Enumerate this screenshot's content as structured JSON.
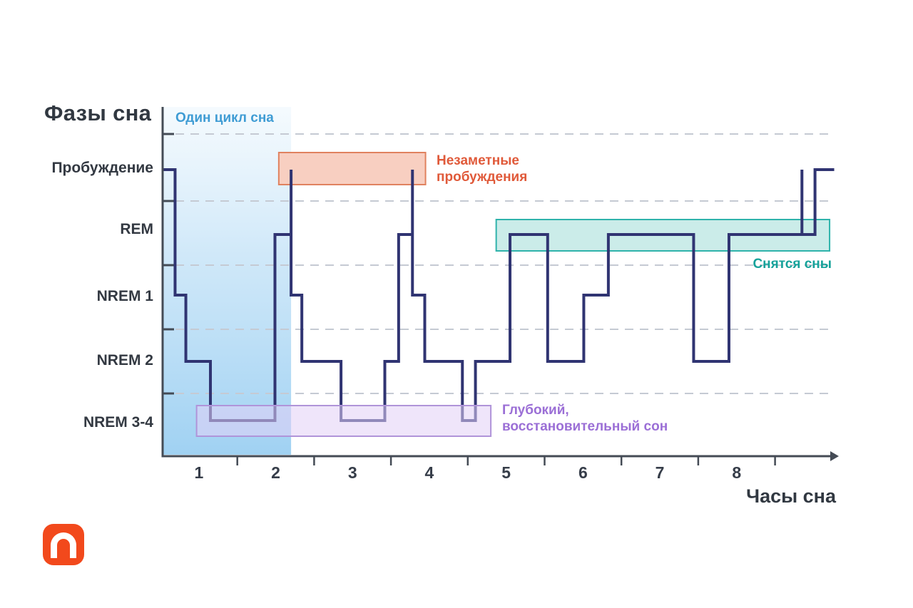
{
  "title": "Фазы сна",
  "x_axis": {
    "label": "Часы сна",
    "ticks": [
      "1",
      "2",
      "3",
      "4",
      "5",
      "6",
      "7",
      "8"
    ]
  },
  "y_axis": {
    "stages": [
      {
        "id": "awake",
        "label": "Пробуждение"
      },
      {
        "id": "rem",
        "label": "REM"
      },
      {
        "id": "n1",
        "label": "NREM 1"
      },
      {
        "id": "n2",
        "label": "NREM 2"
      },
      {
        "id": "n34",
        "label": "NREM 3-4"
      }
    ]
  },
  "annotations": {
    "cycle": {
      "label": "Один цикл сна",
      "color": "#3F9CD4",
      "from_hour": 0.03,
      "to_hour": 1.7,
      "fill_top": "rgba(183,221,246,0.14)",
      "fill_bottom": "rgba(157,208,242,0.97)"
    },
    "awakenings": {
      "line1": "Незаметные",
      "line2": "пробуждения",
      "color": "#E05A3A",
      "fill": "#F8CFC1",
      "border": "#E0825F",
      "from_hour": 1.54,
      "to_hour": 3.45,
      "stage": "awake"
    },
    "dreams": {
      "label": "Снятся сны",
      "color": "#16A29A",
      "fill": "rgba(186,230,226,0.75)",
      "border": "#2FB3AB",
      "from_hour": 4.37,
      "to_hour": 8.71,
      "stage": "rem"
    },
    "deep": {
      "line1": "Глубокий,",
      "line2": "восстановительный сон",
      "color": "#9B6FD6",
      "fill": "rgba(226,208,246,0.55)",
      "border": "#B094D9",
      "from_hour": 0.47,
      "to_hour": 4.3,
      "stage": "n34"
    }
  },
  "chart_data": {
    "type": "line",
    "subtype": "step-hypnogram",
    "title": "Фазы сна",
    "xlabel": "Часы сна",
    "x_tick_labels": [
      "1",
      "2",
      "3",
      "4",
      "5",
      "6",
      "7",
      "8"
    ],
    "x_range_hours": [
      0,
      8.8
    ],
    "grid": "dashed-horizontal",
    "legend": "none",
    "stages_top_to_bottom": [
      "Пробуждение",
      "REM",
      "NREM 1",
      "NREM 2",
      "NREM 3-4"
    ],
    "line_color": "#303472",
    "segments_hour_start_end_stage": [
      [
        0.03,
        0.19,
        "awake"
      ],
      [
        0.19,
        0.33,
        "n1"
      ],
      [
        0.33,
        0.65,
        "n2"
      ],
      [
        0.65,
        1.49,
        "n34"
      ],
      [
        1.49,
        1.7,
        "rem"
      ],
      [
        1.7,
        1.7,
        "awake"
      ],
      [
        1.7,
        1.84,
        "n1"
      ],
      [
        1.84,
        2.35,
        "n2"
      ],
      [
        2.35,
        2.92,
        "n34"
      ],
      [
        2.92,
        3.1,
        "n2"
      ],
      [
        3.1,
        3.28,
        "rem"
      ],
      [
        3.28,
        3.28,
        "awake"
      ],
      [
        3.28,
        3.44,
        "n1"
      ],
      [
        3.44,
        3.93,
        "n2"
      ],
      [
        3.93,
        4.1,
        "n34"
      ],
      [
        4.1,
        4.55,
        "n2"
      ],
      [
        4.55,
        5.04,
        "rem"
      ],
      [
        5.04,
        5.51,
        "n2"
      ],
      [
        5.51,
        5.83,
        "n1"
      ],
      [
        5.83,
        6.94,
        "rem"
      ],
      [
        6.94,
        7.4,
        "n2"
      ],
      [
        7.4,
        8.35,
        "rem"
      ],
      [
        8.35,
        8.35,
        "awake"
      ],
      [
        8.35,
        8.52,
        "rem"
      ],
      [
        8.52,
        8.77,
        "awake"
      ]
    ]
  },
  "logo": {
    "letter": "n",
    "color": "#F2491C"
  }
}
